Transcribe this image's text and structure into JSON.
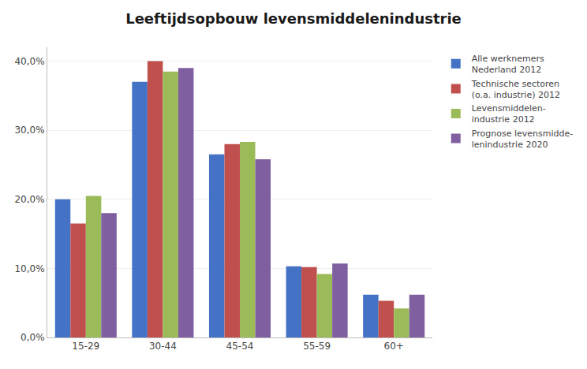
{
  "chart_data": {
    "type": "bar",
    "title": "Leeftijdsopbouw levensmiddelenindustrie",
    "categories": [
      "15-29",
      "30-44",
      "45-54",
      "55-59",
      "60+"
    ],
    "series": [
      {
        "name": "Alle werknemers\nNederland 2012",
        "color": "#4472c4",
        "values": [
          0.2,
          0.37,
          0.265,
          0.103,
          0.062
        ]
      },
      {
        "name": "Technische sectoren\n(o.a. industrie) 2012",
        "color": "#c0504d",
        "values": [
          0.165,
          0.4,
          0.28,
          0.102,
          0.053
        ]
      },
      {
        "name": "Levensmiddelen-\nindustrie 2012",
        "color": "#9bbb59",
        "values": [
          0.205,
          0.385,
          0.283,
          0.092,
          0.042
        ]
      },
      {
        "name": "Prognose levensmidde-\nlenindustrie 2020",
        "color": "#7f5fa0",
        "values": [
          0.18,
          0.39,
          0.258,
          0.107,
          0.062
        ]
      }
    ],
    "ylim": [
      0.0,
      0.42
    ],
    "yticks": [
      {
        "value": 0.0,
        "label": "0,0%"
      },
      {
        "value": 0.1,
        "label": "10,0%"
      },
      {
        "value": 0.2,
        "label": "20,0%"
      },
      {
        "value": 0.3,
        "label": "30,0%"
      },
      {
        "value": 0.4,
        "label": "40,0%"
      }
    ],
    "grid": true,
    "legend": "right"
  }
}
